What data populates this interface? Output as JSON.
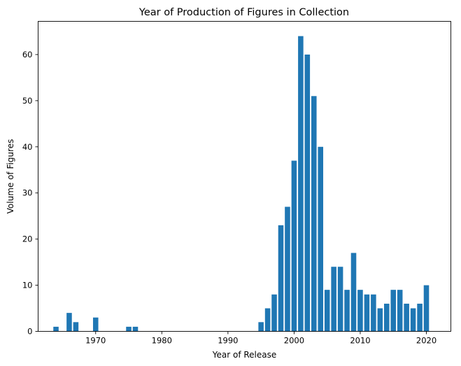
{
  "chart_data": {
    "type": "bar",
    "title": "Year of Production of Figures in Collection",
    "xlabel": "Year of Release",
    "ylabel": "Volume of Figures",
    "xlim": [
      1961.3,
      2023.7
    ],
    "ylim": [
      0,
      67.2
    ],
    "xticks": [
      1970,
      1980,
      1990,
      2000,
      2010,
      2020
    ],
    "yticks": [
      0,
      10,
      20,
      30,
      40,
      50,
      60
    ],
    "grid": false,
    "legend": "none",
    "bar_color": "#1f77b4",
    "x": [
      1964,
      1966,
      1967,
      1970,
      1975,
      1976,
      1995,
      1996,
      1997,
      1998,
      1999,
      2000,
      2001,
      2002,
      2003,
      2004,
      2005,
      2006,
      2007,
      2008,
      2009,
      2010,
      2011,
      2012,
      2013,
      2014,
      2015,
      2016,
      2017,
      2018,
      2019,
      2020
    ],
    "values": [
      1,
      4,
      2,
      3,
      1,
      1,
      2,
      5,
      8,
      23,
      27,
      37,
      64,
      60,
      51,
      40,
      9,
      14,
      14,
      9,
      17,
      9,
      8,
      8,
      5,
      6,
      9,
      9,
      6,
      5,
      6,
      10
    ]
  }
}
